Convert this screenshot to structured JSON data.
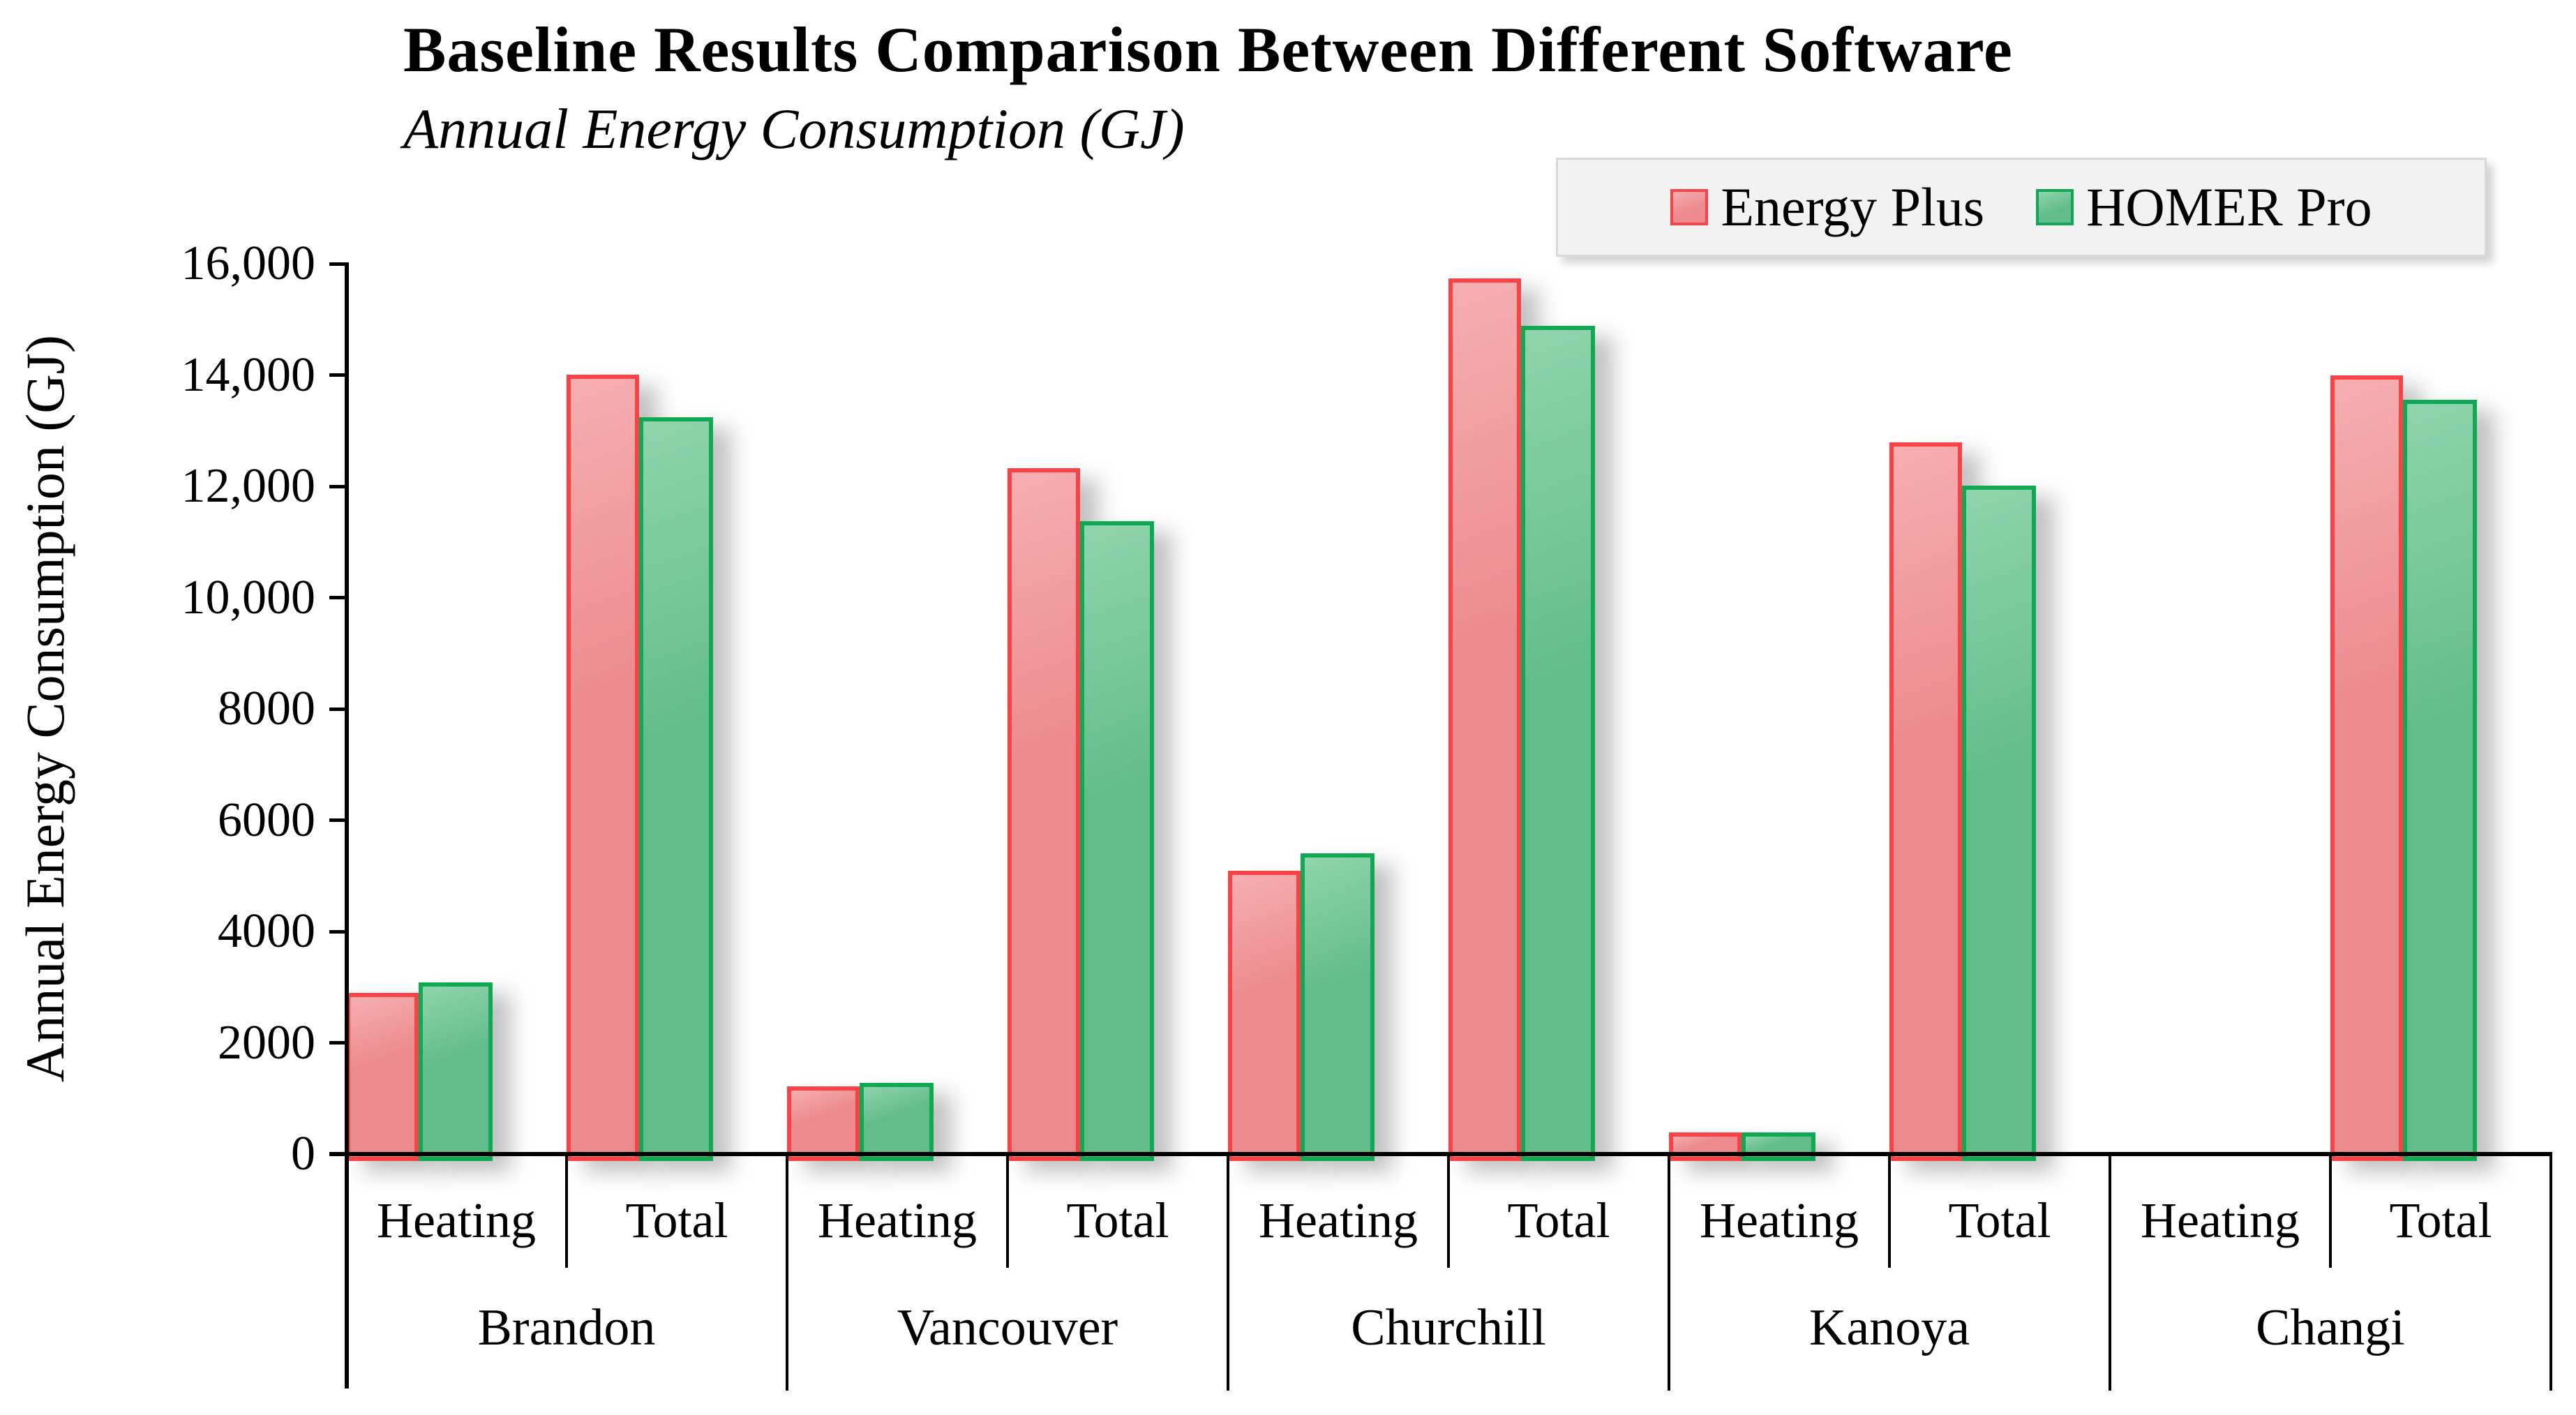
{
  "chart_data": {
    "type": "bar",
    "title": "Baseline Results Comparison Between Different Software",
    "subtitle": "Annual Energy Consumption (GJ)",
    "ylabel": "Annual Energy Consumption (GJ)",
    "ylim": [
      0,
      16000
    ],
    "ytick_labels": [
      "0",
      "2000",
      "4000",
      "6000",
      "8000",
      "10,000",
      "12,000",
      "14,000",
      "16,000"
    ],
    "grid": false,
    "legend_position": "top-right",
    "groups": [
      "Brandon",
      "Vancouver",
      "Churchill",
      "Kanoya",
      "Changi"
    ],
    "subcategories": [
      "Heating",
      "Total"
    ],
    "categories": [
      "Brandon Heating",
      "Brandon Total",
      "Vancouver Heating",
      "Vancouver Total",
      "Churchill Heating",
      "Churchill Total",
      "Kanoya Heating",
      "Kanoya Total",
      "Changi Heating",
      "Changi Total"
    ],
    "series": [
      {
        "name": "Energy Plus",
        "fill": "#EC8A8D",
        "fill_light": "#F6AEB0",
        "border": "#FB4347",
        "values": [
          2900,
          14000,
          1220,
          12330,
          5090,
          15740,
          390,
          12790,
          0,
          13990
        ]
      },
      {
        "name": "HOMER Pro",
        "fill": "#63BD8B",
        "fill_light": "#8FD4AC",
        "border": "#0FA853",
        "values": [
          3090,
          13240,
          1280,
          11370,
          5400,
          14890,
          390,
          12010,
          0,
          13550
        ]
      }
    ],
    "axis_color": "#000000",
    "legend_bg": "#F2F2F2",
    "legend_border": "#D9D9D9"
  }
}
